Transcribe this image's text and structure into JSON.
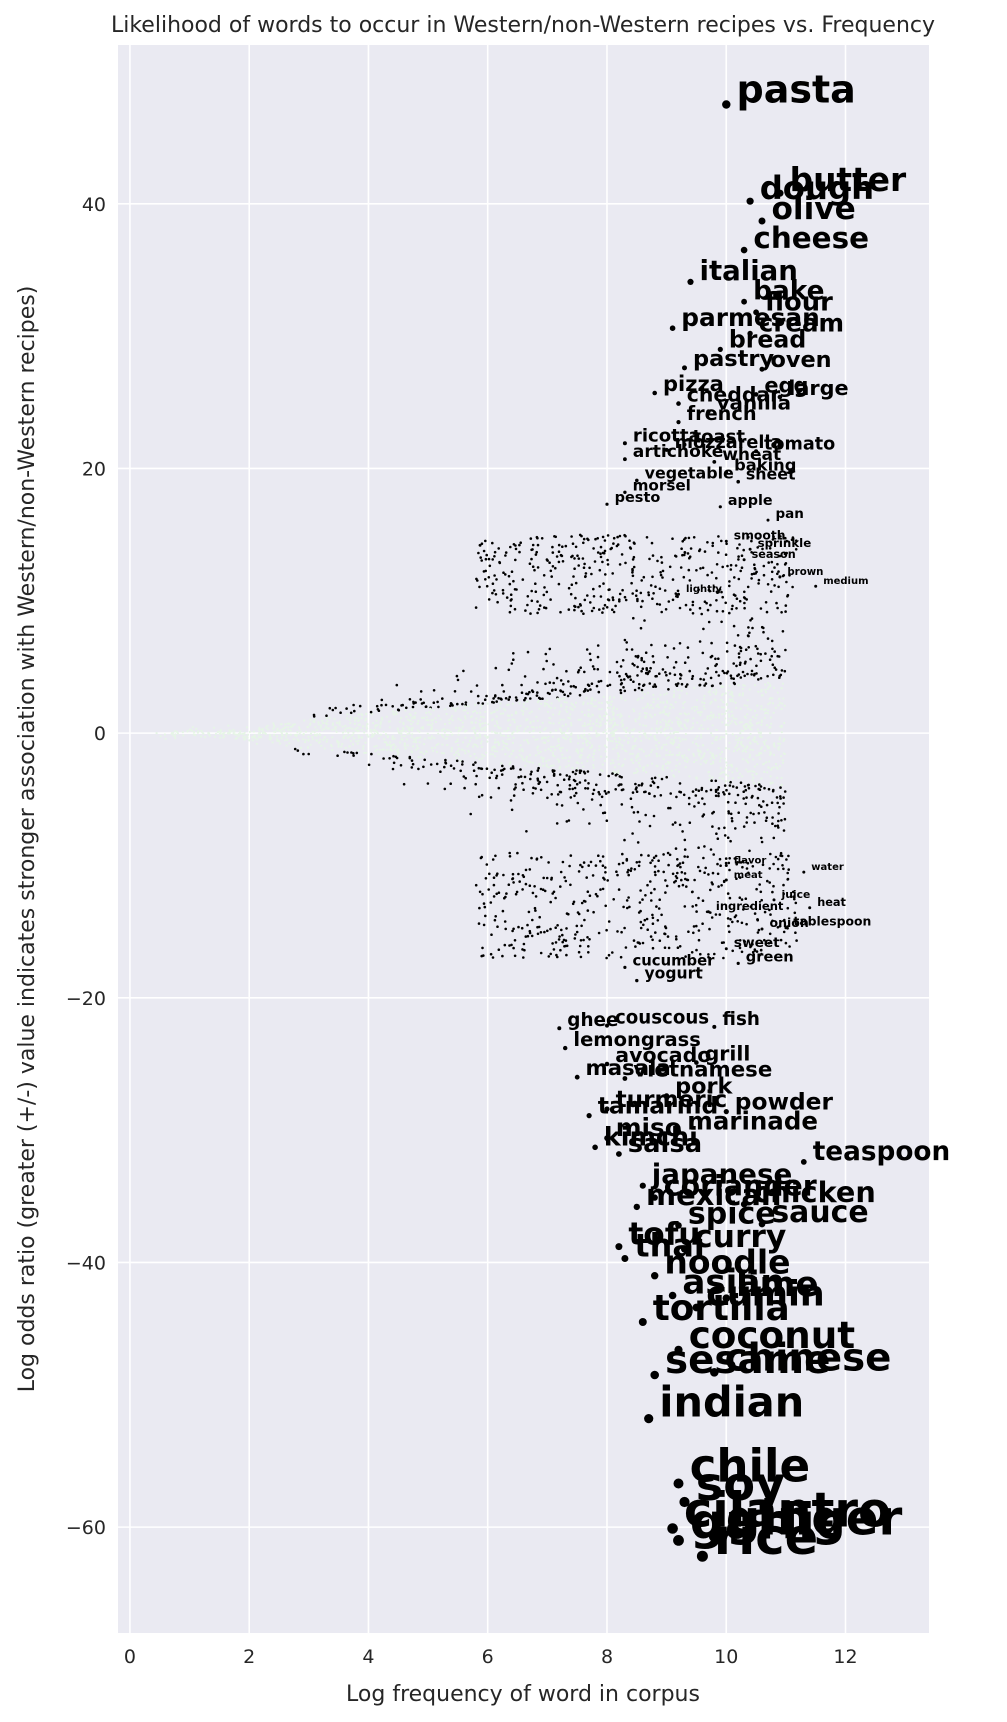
{
  "chart_data": {
    "type": "scatter",
    "title": "Likelihood of words to occur in Western/non-Western recipes vs. Frequency",
    "xlabel": "Log frequency of word in corpus",
    "ylabel": "Log odds ratio (greater (+/-) value indicates stronger association with Western/non-Western recipes)",
    "xlim": [
      -0.2,
      13.4
    ],
    "ylim": [
      -68,
      52
    ],
    "xticks": [
      0,
      2,
      4,
      6,
      8,
      10,
      12
    ],
    "yticks": [
      -60,
      -40,
      -20,
      0,
      20,
      40
    ],
    "grid": true,
    "background": "#eaeaf2",
    "point_color": "#000000",
    "low_significance_color": "#e6f5e6",
    "labeled_points": [
      {
        "word": "pasta",
        "x": 10.0,
        "y": 47.5
      },
      {
        "word": "butter",
        "x": 10.9,
        "y": 40.8
      },
      {
        "word": "dough",
        "x": 10.4,
        "y": 40.2
      },
      {
        "word": "olive",
        "x": 10.6,
        "y": 38.7
      },
      {
        "word": "cheese",
        "x": 10.3,
        "y": 36.5
      },
      {
        "word": "italian",
        "x": 9.4,
        "y": 34.1
      },
      {
        "word": "bake",
        "x": 10.3,
        "y": 32.6
      },
      {
        "word": "flour",
        "x": 10.5,
        "y": 31.8
      },
      {
        "word": "parmesan",
        "x": 9.1,
        "y": 30.6
      },
      {
        "word": "cream",
        "x": 10.4,
        "y": 30.2
      },
      {
        "word": "bread",
        "x": 9.9,
        "y": 29.0
      },
      {
        "word": "pastry",
        "x": 9.3,
        "y": 27.6
      },
      {
        "word": "oven",
        "x": 10.6,
        "y": 27.5
      },
      {
        "word": "pizza",
        "x": 8.8,
        "y": 25.7
      },
      {
        "word": "egg",
        "x": 10.5,
        "y": 25.6
      },
      {
        "word": "large",
        "x": 10.9,
        "y": 25.4
      },
      {
        "word": "cheddar",
        "x": 9.2,
        "y": 24.9
      },
      {
        "word": "vanilla",
        "x": 9.7,
        "y": 24.3
      },
      {
        "word": "french",
        "x": 9.2,
        "y": 23.5
      },
      {
        "word": "ricotta",
        "x": 8.3,
        "y": 21.9
      },
      {
        "word": "toast",
        "x": 9.3,
        "y": 21.8
      },
      {
        "word": "mozzarella",
        "x": 9.0,
        "y": 21.4
      },
      {
        "word": "tomato",
        "x": 10.5,
        "y": 21.3
      },
      {
        "word": "wheat",
        "x": 9.8,
        "y": 20.5
      },
      {
        "word": "artichoke",
        "x": 8.3,
        "y": 20.7
      },
      {
        "word": "baking",
        "x": 10.0,
        "y": 19.7
      },
      {
        "word": "vegetable",
        "x": 8.5,
        "y": 19.1
      },
      {
        "word": "sheet",
        "x": 10.2,
        "y": 19.0
      },
      {
        "word": "morsel",
        "x": 8.3,
        "y": 18.2
      },
      {
        "word": "pesto",
        "x": 8.0,
        "y": 17.3
      },
      {
        "word": "apple",
        "x": 9.9,
        "y": 17.1
      },
      {
        "word": "pan",
        "x": 10.7,
        "y": 16.1
      },
      {
        "word": "smooth",
        "x": 10.0,
        "y": 14.5
      },
      {
        "word": "sprinkle",
        "x": 10.4,
        "y": 13.9
      },
      {
        "word": "season",
        "x": 10.3,
        "y": 13.1
      },
      {
        "word": "brown",
        "x": 10.9,
        "y": 11.8
      },
      {
        "word": "medium",
        "x": 11.5,
        "y": 11.1
      },
      {
        "word": "lightly",
        "x": 9.2,
        "y": 10.5
      },
      {
        "word": "water",
        "x": 11.3,
        "y": -10.5
      },
      {
        "word": "flavor",
        "x": 10.0,
        "y": -10.0
      },
      {
        "word": "meat",
        "x": 10.0,
        "y": -11.1
      },
      {
        "word": "juice",
        "x": 10.8,
        "y": -12.6
      },
      {
        "word": "heat",
        "x": 11.4,
        "y": -13.2
      },
      {
        "word": "ingredient",
        "x": 9.7,
        "y": -13.5
      },
      {
        "word": "onion",
        "x": 10.6,
        "y": -14.8
      },
      {
        "word": "tablespoon",
        "x": 11.0,
        "y": -14.7
      },
      {
        "word": "sweet",
        "x": 10.0,
        "y": -16.3
      },
      {
        "word": "green",
        "x": 10.2,
        "y": -17.4
      },
      {
        "word": "cucumber",
        "x": 8.3,
        "y": -17.7
      },
      {
        "word": "yogurt",
        "x": 8.5,
        "y": -18.7
      },
      {
        "word": "couscous",
        "x": 8.0,
        "y": -22.1
      },
      {
        "word": "fish",
        "x": 9.8,
        "y": -22.2
      },
      {
        "word": "ghee",
        "x": 7.2,
        "y": -22.3
      },
      {
        "word": "lemongrass",
        "x": 7.3,
        "y": -23.8
      },
      {
        "word": "avocado",
        "x": 8.0,
        "y": -25.0
      },
      {
        "word": "grill",
        "x": 9.5,
        "y": -24.9
      },
      {
        "word": "vietnamese",
        "x": 8.3,
        "y": -26.1
      },
      {
        "word": "masala",
        "x": 7.5,
        "y": -26.0
      },
      {
        "word": "pork",
        "x": 9.0,
        "y": -27.4
      },
      {
        "word": "powder",
        "x": 10.0,
        "y": -28.6
      },
      {
        "word": "turmeric",
        "x": 8.0,
        "y": -28.4
      },
      {
        "word": "tamarind",
        "x": 7.7,
        "y": -28.9
      },
      {
        "word": "marinade",
        "x": 9.2,
        "y": -30.1
      },
      {
        "word": "miso",
        "x": 8.0,
        "y": -30.6
      },
      {
        "word": "kimchi",
        "x": 7.8,
        "y": -31.3
      },
      {
        "word": "salsa",
        "x": 8.2,
        "y": -31.8
      },
      {
        "word": "teaspoon",
        "x": 11.3,
        "y": -32.4
      },
      {
        "word": "japanese",
        "x": 8.6,
        "y": -34.2
      },
      {
        "word": "coriander",
        "x": 8.8,
        "y": -35.1
      },
      {
        "word": "chicken",
        "x": 10.3,
        "y": -35.6
      },
      {
        "word": "mexican",
        "x": 8.5,
        "y": -35.8
      },
      {
        "word": "spice",
        "x": 9.2,
        "y": -37.2
      },
      {
        "word": "sauce",
        "x": 10.6,
        "y": -37.1
      },
      {
        "word": "tofu",
        "x": 8.2,
        "y": -38.8
      },
      {
        "word": "curry",
        "x": 9.3,
        "y": -39.0
      },
      {
        "word": "thai",
        "x": 8.3,
        "y": -39.7
      },
      {
        "word": "noodle",
        "x": 8.8,
        "y": -41.0
      },
      {
        "word": "asian",
        "x": 9.1,
        "y": -42.5
      },
      {
        "word": "cumin",
        "x": 9.5,
        "y": -43.4
      },
      {
        "word": "lime",
        "x": 10.0,
        "y": -42.7
      },
      {
        "word": "tortilla",
        "x": 8.6,
        "y": -44.5
      },
      {
        "word": "coconut",
        "x": 9.2,
        "y": -46.6
      },
      {
        "word": "sesame",
        "x": 8.8,
        "y": -48.5
      },
      {
        "word": "chinese",
        "x": 9.8,
        "y": -48.3
      },
      {
        "word": "indian",
        "x": 8.7,
        "y": -51.8
      },
      {
        "word": "chile",
        "x": 9.2,
        "y": -56.7
      },
      {
        "word": "soy",
        "x": 9.3,
        "y": -58.1
      },
      {
        "word": "cilantro",
        "x": 9.1,
        "y": -60.1
      },
      {
        "word": "ginger",
        "x": 9.8,
        "y": -60.7
      },
      {
        "word": "garlic",
        "x": 9.2,
        "y": -61.0
      },
      {
        "word": "rice",
        "x": 9.6,
        "y": -62.2
      }
    ]
  }
}
